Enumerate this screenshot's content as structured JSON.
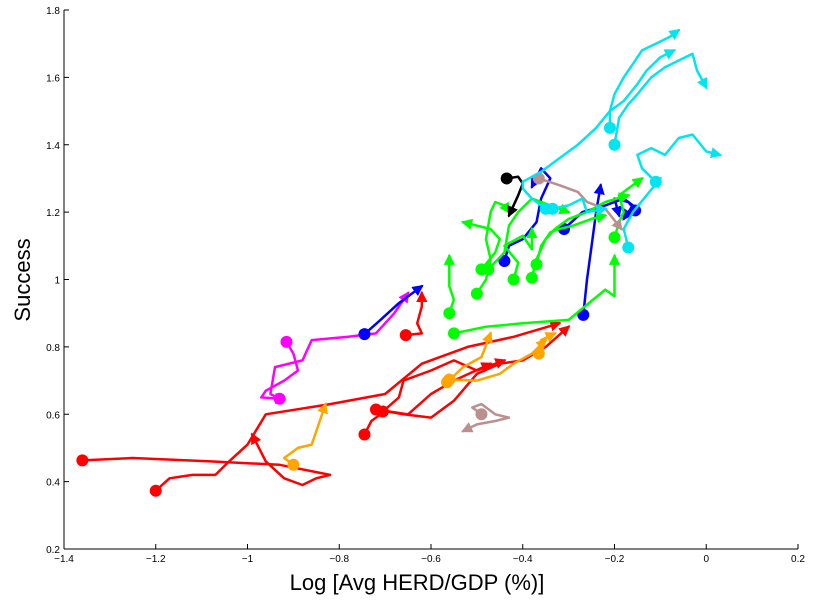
{
  "chart_data": {
    "type": "line",
    "title": "",
    "xlabel": "Log [Avg HERD/GDP (%)]",
    "ylabel": "Success",
    "xlim": [
      -1.4,
      0.2
    ],
    "ylim": [
      0.2,
      1.8
    ],
    "xticks": [
      -1.4,
      -1.2,
      -1,
      -0.8,
      -0.6,
      -0.4,
      -0.2,
      0,
      0.2
    ],
    "xtick_labels": [
      "−1.4",
      "−1.2",
      "−1",
      "−0.8",
      "−0.6",
      "−0.4",
      "−0.2",
      "0",
      "0.2"
    ],
    "yticks": [
      0.2,
      0.4,
      0.6,
      0.8,
      1,
      1.2,
      1.4,
      1.6,
      1.8
    ],
    "ytick_labels": [
      "0.2",
      "0.4",
      "0.6",
      "0.8",
      "1",
      "1.2",
      "1.4",
      "1.6",
      "1.8"
    ],
    "grid": false,
    "legend": "none",
    "series": [
      {
        "color": "#ff0000",
        "points": [
          [
            -1.36,
            0.463
          ],
          [
            -1.25,
            0.47
          ],
          [
            -1.08,
            0.46
          ],
          [
            -0.93,
            0.45
          ],
          [
            -0.82,
            0.42
          ],
          [
            -0.85,
            0.41
          ],
          [
            -0.88,
            0.39
          ],
          [
            -0.92,
            0.41
          ],
          [
            -0.96,
            0.46
          ],
          [
            -0.99,
            0.54
          ]
        ]
      },
      {
        "color": "#ff0000",
        "points": [
          [
            -1.2,
            0.373
          ],
          [
            -1.17,
            0.41
          ],
          [
            -1.12,
            0.42
          ],
          [
            -1.07,
            0.42
          ],
          [
            -1.04,
            0.46
          ],
          [
            -1.0,
            0.51
          ],
          [
            -0.96,
            0.6
          ],
          [
            -0.82,
            0.63
          ],
          [
            -0.7,
            0.66
          ],
          [
            -0.62,
            0.75
          ],
          [
            -0.52,
            0.8
          ],
          [
            -0.42,
            0.83
          ],
          [
            -0.32,
            0.87
          ]
        ]
      },
      {
        "color": "#ff0000",
        "points": [
          [
            -0.745,
            0.54
          ],
          [
            -0.73,
            0.58
          ],
          [
            -0.7,
            0.61
          ],
          [
            -0.65,
            0.6
          ],
          [
            -0.6,
            0.66
          ],
          [
            -0.55,
            0.7
          ],
          [
            -0.47,
            0.75
          ]
        ]
      },
      {
        "color": "#ff0000",
        "points": [
          [
            -0.72,
            0.614
          ],
          [
            -0.66,
            0.6
          ],
          [
            -0.6,
            0.59
          ],
          [
            -0.55,
            0.64
          ],
          [
            -0.5,
            0.72
          ],
          [
            -0.45,
            0.75
          ],
          [
            -0.4,
            0.76
          ],
          [
            -0.35,
            0.8
          ],
          [
            -0.3,
            0.86
          ]
        ]
      },
      {
        "color": "#ff0000",
        "points": [
          [
            -0.705,
            0.608
          ],
          [
            -0.67,
            0.65
          ],
          [
            -0.66,
            0.7
          ],
          [
            -0.6,
            0.73
          ],
          [
            -0.55,
            0.76
          ],
          [
            -0.5,
            0.73
          ],
          [
            -0.44,
            0.76
          ]
        ]
      },
      {
        "color": "#ff0000",
        "points": [
          [
            -0.655,
            0.835
          ],
          [
            -0.62,
            0.84
          ],
          [
            -0.63,
            0.87
          ],
          [
            -0.62,
            0.92
          ],
          [
            -0.62,
            0.96
          ]
        ]
      },
      {
        "color": "#ffa500",
        "points": [
          [
            -0.9,
            0.45
          ],
          [
            -0.92,
            0.47
          ],
          [
            -0.89,
            0.5
          ],
          [
            -0.86,
            0.51
          ],
          [
            -0.85,
            0.55
          ],
          [
            -0.83,
            0.63
          ]
        ]
      },
      {
        "color": "#ffa500",
        "points": [
          [
            -0.56,
            0.703
          ],
          [
            -0.5,
            0.7
          ],
          [
            -0.45,
            0.72
          ],
          [
            -0.42,
            0.75
          ],
          [
            -0.38,
            0.78
          ],
          [
            -0.35,
            0.82
          ]
        ]
      },
      {
        "color": "#ffa500",
        "points": [
          [
            -0.365,
            0.78
          ],
          [
            -0.36,
            0.82
          ],
          [
            -0.33,
            0.84
          ]
        ]
      },
      {
        "color": "#ffa500",
        "points": [
          [
            -0.565,
            0.695
          ],
          [
            -0.53,
            0.74
          ],
          [
            -0.49,
            0.77
          ],
          [
            -0.47,
            0.84
          ]
        ]
      },
      {
        "color": "#ff00ff",
        "points": [
          [
            -0.915,
            0.815
          ],
          [
            -0.9,
            0.78
          ],
          [
            -0.89,
            0.73
          ],
          [
            -0.92,
            0.7
          ],
          [
            -0.96,
            0.67
          ],
          [
            -0.97,
            0.65
          ],
          [
            -0.92,
            0.645
          ]
        ]
      },
      {
        "color": "#ff00ff",
        "points": [
          [
            -0.93,
            0.646
          ],
          [
            -0.95,
            0.66
          ],
          [
            -0.94,
            0.74
          ],
          [
            -0.88,
            0.76
          ],
          [
            -0.86,
            0.82
          ],
          [
            -0.78,
            0.83
          ],
          [
            -0.72,
            0.84
          ],
          [
            -0.68,
            0.9
          ],
          [
            -0.65,
            0.96
          ]
        ]
      },
      {
        "color": "#0000ff",
        "points": [
          [
            -0.745,
            0.838
          ],
          [
            -0.71,
            0.88
          ],
          [
            -0.67,
            0.93
          ],
          [
            -0.62,
            0.98
          ]
        ]
      },
      {
        "color": "#0000ff",
        "points": [
          [
            -0.268,
            0.895
          ],
          [
            -0.26,
            1.0
          ],
          [
            -0.25,
            1.1
          ],
          [
            -0.24,
            1.2
          ],
          [
            -0.23,
            1.28
          ]
        ]
      },
      {
        "color": "#0000ff",
        "points": [
          [
            -0.44,
            1.055
          ],
          [
            -0.43,
            1.1
          ],
          [
            -0.4,
            1.12
          ],
          [
            -0.37,
            1.17
          ],
          [
            -0.36,
            1.24
          ],
          [
            -0.34,
            1.3
          ],
          [
            -0.36,
            1.33
          ],
          [
            -0.38,
            1.275
          ]
        ]
      },
      {
        "color": "#0000ff",
        "points": [
          [
            -0.31,
            1.15
          ],
          [
            -0.27,
            1.2
          ],
          [
            -0.22,
            1.22
          ],
          [
            -0.18,
            1.24
          ],
          [
            -0.16,
            1.22
          ],
          [
            -0.18,
            1.18
          ]
        ]
      },
      {
        "color": "#0000ff",
        "points": [
          [
            -0.155,
            1.205
          ],
          [
            -0.17,
            1.23
          ],
          [
            -0.2,
            1.24
          ],
          [
            -0.19,
            1.19
          ]
        ]
      },
      {
        "color": "#00ff00",
        "points": [
          [
            -0.5,
            0.958
          ],
          [
            -0.48,
            1.0
          ],
          [
            -0.47,
            1.06
          ],
          [
            -0.48,
            1.12
          ],
          [
            -0.47,
            1.2
          ],
          [
            -0.46,
            1.23
          ],
          [
            -0.44,
            1.22
          ],
          [
            -0.43,
            1.2
          ]
        ]
      },
      {
        "color": "#00ff00",
        "points": [
          [
            -0.56,
            0.9
          ],
          [
            -0.55,
            0.94
          ],
          [
            -0.56,
            0.98
          ],
          [
            -0.56,
            1.07
          ]
        ]
      },
      {
        "color": "#00ff00",
        "points": [
          [
            -0.55,
            0.84
          ],
          [
            -0.48,
            0.86
          ],
          [
            -0.4,
            0.87
          ],
          [
            -0.3,
            0.88
          ],
          [
            -0.22,
            0.97
          ],
          [
            -0.2,
            0.95
          ],
          [
            -0.2,
            1.07
          ]
        ]
      },
      {
        "color": "#00ff00",
        "points": [
          [
            -0.49,
            1.03
          ],
          [
            -0.46,
            1.08
          ],
          [
            -0.45,
            1.12
          ],
          [
            -0.47,
            1.15
          ],
          [
            -0.5,
            1.16
          ],
          [
            -0.53,
            1.17
          ]
        ]
      },
      {
        "color": "#00ff00",
        "points": [
          [
            -0.475,
            1.03
          ],
          [
            -0.44,
            1.08
          ],
          [
            -0.43,
            1.16
          ],
          [
            -0.41,
            1.2
          ],
          [
            -0.38,
            1.24
          ],
          [
            -0.34,
            1.22
          ],
          [
            -0.3,
            1.2
          ]
        ]
      },
      {
        "color": "#00ff00",
        "points": [
          [
            -0.38,
            1.005
          ],
          [
            -0.37,
            1.06
          ],
          [
            -0.35,
            1.12
          ],
          [
            -0.33,
            1.15
          ],
          [
            -0.3,
            1.18
          ],
          [
            -0.26,
            1.2
          ],
          [
            -0.22,
            1.23
          ],
          [
            -0.17,
            1.25
          ]
        ]
      },
      {
        "color": "#00ff00",
        "points": [
          [
            -0.37,
            1.045
          ],
          [
            -0.36,
            1.1
          ],
          [
            -0.34,
            1.14
          ],
          [
            -0.32,
            1.15
          ],
          [
            -0.29,
            1.16
          ],
          [
            -0.25,
            1.18
          ],
          [
            -0.22,
            1.19
          ]
        ]
      },
      {
        "color": "#00ff00",
        "points": [
          [
            -0.2,
            1.125
          ],
          [
            -0.19,
            1.17
          ],
          [
            -0.18,
            1.2
          ],
          [
            -0.19,
            1.25
          ],
          [
            -0.17,
            1.27
          ],
          [
            -0.14,
            1.3
          ]
        ]
      },
      {
        "color": "#00ff00",
        "points": [
          [
            -0.42,
            1.0
          ],
          [
            -0.41,
            1.05
          ],
          [
            -0.44,
            1.1
          ],
          [
            -0.4,
            1.13
          ],
          [
            -0.38,
            1.09
          ],
          [
            -0.38,
            1.15
          ]
        ]
      },
      {
        "color": "#000000",
        "points": [
          [
            -0.435,
            1.3
          ],
          [
            -0.41,
            1.305
          ],
          [
            -0.4,
            1.285
          ],
          [
            -0.41,
            1.25
          ],
          [
            -0.43,
            1.19
          ]
        ]
      },
      {
        "color": "#bc8f8f",
        "points": [
          [
            -0.365,
            1.3
          ],
          [
            -0.32,
            1.28
          ],
          [
            -0.28,
            1.26
          ],
          [
            -0.26,
            1.23
          ],
          [
            -0.22,
            1.21
          ],
          [
            -0.185,
            1.15
          ]
        ]
      },
      {
        "color": "#bc8f8f",
        "points": [
          [
            -0.49,
            0.6
          ],
          [
            -0.51,
            0.62
          ],
          [
            -0.49,
            0.63
          ],
          [
            -0.46,
            0.6
          ],
          [
            -0.43,
            0.59
          ],
          [
            -0.46,
            0.58
          ],
          [
            -0.5,
            0.57
          ],
          [
            -0.53,
            0.55
          ]
        ]
      },
      {
        "color": "#00e5ee",
        "points": [
          [
            -0.21,
            1.45
          ],
          [
            -0.21,
            1.5
          ],
          [
            -0.18,
            1.53
          ],
          [
            -0.15,
            1.58
          ],
          [
            -0.13,
            1.62
          ],
          [
            -0.1,
            1.66
          ],
          [
            -0.07,
            1.68
          ]
        ]
      },
      {
        "color": "#00e5ee",
        "points": [
          [
            -0.2,
            1.4
          ],
          [
            -0.19,
            1.48
          ],
          [
            -0.17,
            1.52
          ],
          [
            -0.15,
            1.55
          ],
          [
            -0.12,
            1.6
          ],
          [
            -0.09,
            1.63
          ],
          [
            -0.06,
            1.65
          ],
          [
            -0.03,
            1.67
          ],
          [
            -0.02,
            1.62
          ],
          [
            0.0,
            1.57
          ]
        ]
      },
      {
        "color": "#00e5ee",
        "points": [
          [
            -0.11,
            1.29
          ],
          [
            -0.14,
            1.33
          ],
          [
            -0.15,
            1.37
          ],
          [
            -0.12,
            1.39
          ],
          [
            -0.09,
            1.37
          ],
          [
            -0.06,
            1.42
          ],
          [
            -0.03,
            1.43
          ],
          [
            0.0,
            1.38
          ],
          [
            0.03,
            1.37
          ]
        ]
      },
      {
        "color": "#00e5ee",
        "points": [
          [
            -0.17,
            1.095
          ],
          [
            -0.18,
            1.15
          ],
          [
            -0.16,
            1.2
          ],
          [
            -0.13,
            1.25
          ],
          [
            -0.1,
            1.3
          ]
        ]
      },
      {
        "color": "#00e5ee",
        "points": [
          [
            -0.35,
            1.21
          ],
          [
            -0.38,
            1.24
          ],
          [
            -0.4,
            1.27
          ],
          [
            -0.4,
            1.29
          ],
          [
            -0.36,
            1.32
          ],
          [
            -0.32,
            1.36
          ],
          [
            -0.28,
            1.4
          ],
          [
            -0.24,
            1.45
          ],
          [
            -0.21,
            1.5
          ],
          [
            -0.2,
            1.55
          ],
          [
            -0.18,
            1.6
          ],
          [
            -0.16,
            1.64
          ],
          [
            -0.14,
            1.68
          ],
          [
            -0.11,
            1.7
          ],
          [
            -0.08,
            1.72
          ],
          [
            -0.06,
            1.74
          ]
        ]
      },
      {
        "color": "#00e5ee",
        "points": [
          [
            -0.335,
            1.21
          ],
          [
            -0.3,
            1.22
          ],
          [
            -0.27,
            1.24
          ],
          [
            -0.26,
            1.2
          ],
          [
            -0.22,
            1.21
          ]
        ]
      }
    ]
  }
}
